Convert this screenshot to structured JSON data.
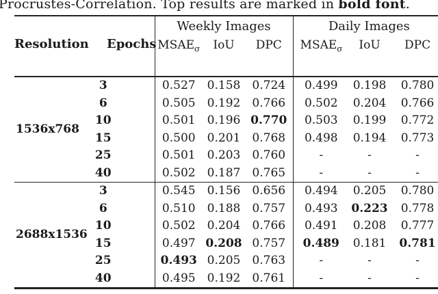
{
  "caption": {
    "prefix": "Procrustes-Correlation. Top results are marked in ",
    "bold": "bold font",
    "suffix": "."
  },
  "table": {
    "header": {
      "resolution": "Resolution",
      "epochs": "Epochs"
    },
    "groups": [
      {
        "label": "Weekly Images"
      },
      {
        "label": "Daily Images"
      }
    ],
    "metrics": [
      {
        "base": "MSAE",
        "sub": "σ"
      },
      {
        "base": "IoU",
        "sub": ""
      },
      {
        "base": "DPC",
        "sub": ""
      }
    ],
    "metric_keys": [
      "msae",
      "iou",
      "dpc"
    ],
    "blocks": [
      {
        "resolution": "1536x768",
        "rows": [
          {
            "epochs": "3",
            "weekly": [
              {
                "v": "0.527",
                "b": false
              },
              {
                "v": "0.158",
                "b": false
              },
              {
                "v": "0.724",
                "b": false
              }
            ],
            "daily": [
              {
                "v": "0.499",
                "b": false
              },
              {
                "v": "0.198",
                "b": false
              },
              {
                "v": "0.780",
                "b": false
              }
            ]
          },
          {
            "epochs": "6",
            "weekly": [
              {
                "v": "0.505",
                "b": false
              },
              {
                "v": "0.192",
                "b": false
              },
              {
                "v": "0.766",
                "b": false
              }
            ],
            "daily": [
              {
                "v": "0.502",
                "b": false
              },
              {
                "v": "0.204",
                "b": false
              },
              {
                "v": "0.766",
                "b": false
              }
            ]
          },
          {
            "epochs": "10",
            "weekly": [
              {
                "v": "0.501",
                "b": false
              },
              {
                "v": "0.196",
                "b": false
              },
              {
                "v": "0.770",
                "b": true
              }
            ],
            "daily": [
              {
                "v": "0.503",
                "b": false
              },
              {
                "v": "0.199",
                "b": false
              },
              {
                "v": "0.772",
                "b": false
              }
            ]
          },
          {
            "epochs": "15",
            "weekly": [
              {
                "v": "0.500",
                "b": false
              },
              {
                "v": "0.201",
                "b": false
              },
              {
                "v": "0.768",
                "b": false
              }
            ],
            "daily": [
              {
                "v": "0.498",
                "b": false
              },
              {
                "v": "0.194",
                "b": false
              },
              {
                "v": "0.773",
                "b": false
              }
            ]
          },
          {
            "epochs": "25",
            "weekly": [
              {
                "v": "0.501",
                "b": false
              },
              {
                "v": "0.203",
                "b": false
              },
              {
                "v": "0.760",
                "b": false
              }
            ],
            "daily": [
              {
                "v": "-",
                "b": false
              },
              {
                "v": "-",
                "b": false
              },
              {
                "v": "-",
                "b": false
              }
            ]
          },
          {
            "epochs": "40",
            "weekly": [
              {
                "v": "0.502",
                "b": false
              },
              {
                "v": "0.187",
                "b": false
              },
              {
                "v": "0.765",
                "b": false
              }
            ],
            "daily": [
              {
                "v": "-",
                "b": false
              },
              {
                "v": "-",
                "b": false
              },
              {
                "v": "-",
                "b": false
              }
            ]
          }
        ]
      },
      {
        "resolution": "2688x1536",
        "rows": [
          {
            "epochs": "3",
            "weekly": [
              {
                "v": "0.545",
                "b": false
              },
              {
                "v": "0.156",
                "b": false
              },
              {
                "v": "0.656",
                "b": false
              }
            ],
            "daily": [
              {
                "v": "0.494",
                "b": false
              },
              {
                "v": "0.205",
                "b": false
              },
              {
                "v": "0.780",
                "b": false
              }
            ]
          },
          {
            "epochs": "6",
            "weekly": [
              {
                "v": "0.510",
                "b": false
              },
              {
                "v": "0.188",
                "b": false
              },
              {
                "v": "0.757",
                "b": false
              }
            ],
            "daily": [
              {
                "v": "0.493",
                "b": false
              },
              {
                "v": "0.223",
                "b": true
              },
              {
                "v": "0.778",
                "b": false
              }
            ]
          },
          {
            "epochs": "10",
            "weekly": [
              {
                "v": "0.502",
                "b": false
              },
              {
                "v": "0.204",
                "b": false
              },
              {
                "v": "0.766",
                "b": false
              }
            ],
            "daily": [
              {
                "v": "0.491",
                "b": false
              },
              {
                "v": "0.208",
                "b": false
              },
              {
                "v": "0.777",
                "b": false
              }
            ]
          },
          {
            "epochs": "15",
            "weekly": [
              {
                "v": "0.497",
                "b": false
              },
              {
                "v": "0.208",
                "b": true
              },
              {
                "v": "0.757",
                "b": false
              }
            ],
            "daily": [
              {
                "v": "0.489",
                "b": true
              },
              {
                "v": "0.181",
                "b": false
              },
              {
                "v": "0.781",
                "b": true
              }
            ]
          },
          {
            "epochs": "25",
            "weekly": [
              {
                "v": "0.493",
                "b": true
              },
              {
                "v": "0.205",
                "b": false
              },
              {
                "v": "0.763",
                "b": false
              }
            ],
            "daily": [
              {
                "v": "-",
                "b": false
              },
              {
                "v": "-",
                "b": false
              },
              {
                "v": "-",
                "b": false
              }
            ]
          },
          {
            "epochs": "40",
            "weekly": [
              {
                "v": "0.495",
                "b": false
              },
              {
                "v": "0.192",
                "b": false
              },
              {
                "v": "0.761",
                "b": false
              }
            ],
            "daily": [
              {
                "v": "-",
                "b": false
              },
              {
                "v": "-",
                "b": false
              },
              {
                "v": "-",
                "b": false
              }
            ]
          }
        ]
      }
    ]
  }
}
